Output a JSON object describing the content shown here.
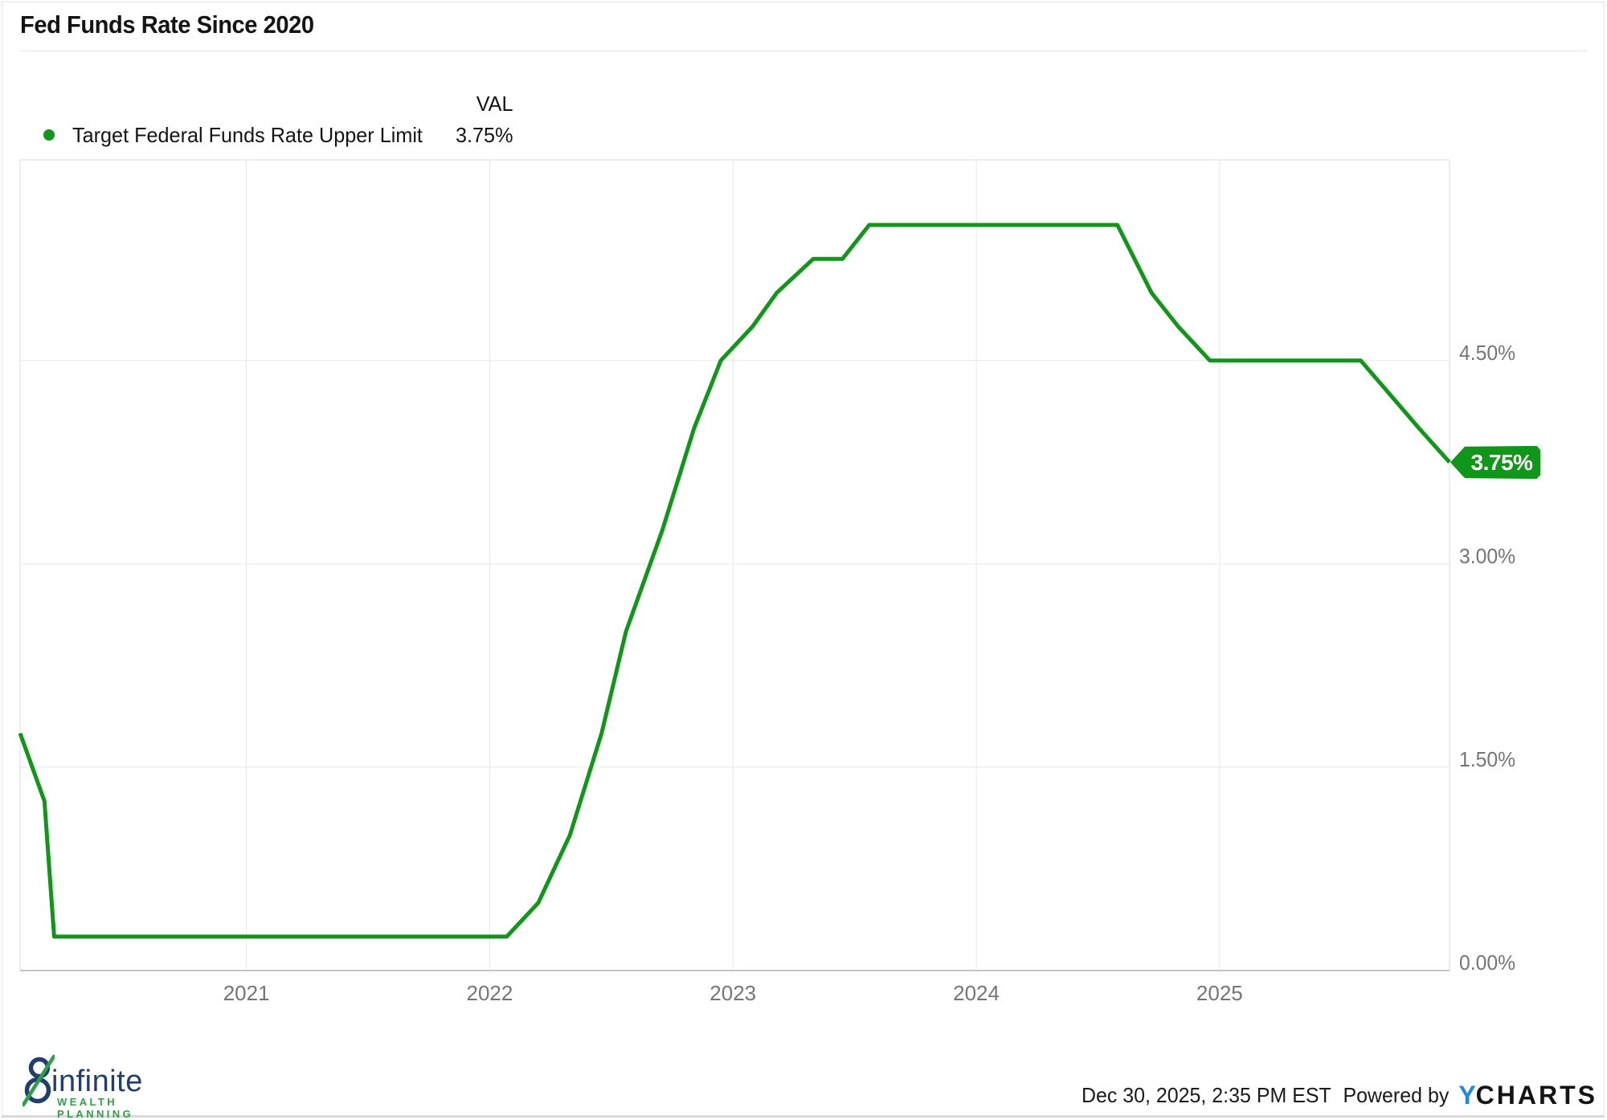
{
  "title": "Fed Funds Rate Since 2020",
  "legend": {
    "val_header": "VAL",
    "series_label": "Target Federal Funds Rate Upper Limit",
    "series_value": "3.75%"
  },
  "badge": {
    "label": "3.75%"
  },
  "colors": {
    "series_green": "#109618",
    "axis_label_gray": "#757575",
    "gridline_gray": "#e7e7e7",
    "ycharts_blue": "#1e88e5",
    "logo_navy": "#223e6d",
    "logo_green": "#2f9e49"
  },
  "footer": {
    "logo_name": "infinite",
    "logo_tagline": "WEALTH PLANNING",
    "timestamp": "Dec 30, 2025, 2:35 PM EST",
    "powered_by": "Powered by",
    "ycharts_y": "Y",
    "ycharts_charts": "CHARTS"
  },
  "chart_data": {
    "type": "line",
    "title": "Fed Funds Rate Since 2020",
    "xlabel": "",
    "ylabel": "Target Federal Funds Rate Upper Limit (%)",
    "grid": true,
    "legend_position": "top-left",
    "xlim": [
      2020.07,
      2025.945
    ],
    "ylim": [
      0,
      5.98
    ],
    "x_ticks": [
      {
        "t": 2021,
        "label": "2021"
      },
      {
        "t": 2022,
        "label": "2022"
      },
      {
        "t": 2023,
        "label": "2023"
      },
      {
        "t": 2024,
        "label": "2024"
      },
      {
        "t": 2025,
        "label": "2025"
      }
    ],
    "y_ticks": [
      {
        "value": 4.5,
        "label": "4.50%"
      },
      {
        "value": 3.0,
        "label": "3.00%"
      },
      {
        "value": 1.5,
        "label": "1.50%"
      },
      {
        "value": 0.0,
        "label": "0.00%"
      }
    ],
    "series": [
      {
        "name": "Target Federal Funds Rate Upper Limit",
        "color": "#109618",
        "current_value": "3.75%",
        "points": [
          {
            "date": "2020-01",
            "t": 2020.07,
            "value": 1.75
          },
          {
            "date": "2020-03",
            "t": 2020.17,
            "value": 1.25
          },
          {
            "date": "2020-03",
            "t": 2020.21,
            "value": 0.25
          },
          {
            "date": "2022-01",
            "t": 2022.07,
            "value": 0.25
          },
          {
            "date": "2022-03",
            "t": 2022.2,
            "value": 0.5
          },
          {
            "date": "2022-05",
            "t": 2022.33,
            "value": 1.0
          },
          {
            "date": "2022-06",
            "t": 2022.46,
            "value": 1.75
          },
          {
            "date": "2022-07",
            "t": 2022.56,
            "value": 2.5
          },
          {
            "date": "2022-09",
            "t": 2022.71,
            "value": 3.25
          },
          {
            "date": "2022-11",
            "t": 2022.84,
            "value": 4.0
          },
          {
            "date": "2022-12",
            "t": 2022.95,
            "value": 4.5
          },
          {
            "date": "2023-02",
            "t": 2023.08,
            "value": 4.75
          },
          {
            "date": "2023-03",
            "t": 2023.18,
            "value": 5.0
          },
          {
            "date": "2023-05",
            "t": 2023.33,
            "value": 5.25
          },
          {
            "date": "2023-06",
            "t": 2023.45,
            "value": 5.25
          },
          {
            "date": "2023-07",
            "t": 2023.56,
            "value": 5.5
          },
          {
            "date": "2024-08",
            "t": 2024.58,
            "value": 5.5
          },
          {
            "date": "2024-09",
            "t": 2024.72,
            "value": 5.0
          },
          {
            "date": "2024-11",
            "t": 2024.83,
            "value": 4.75
          },
          {
            "date": "2024-12",
            "t": 2024.96,
            "value": 4.5
          },
          {
            "date": "2025-08",
            "t": 2025.58,
            "value": 4.5
          },
          {
            "date": "2025-09",
            "t": 2025.7,
            "value": 4.25
          },
          {
            "date": "2025-10",
            "t": 2025.82,
            "value": 4.0
          },
          {
            "date": "2025-12",
            "t": 2025.945,
            "value": 3.75
          }
        ]
      }
    ]
  }
}
